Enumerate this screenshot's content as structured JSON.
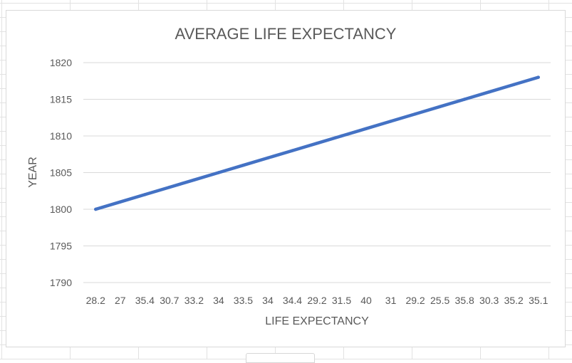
{
  "chart_data": {
    "type": "line",
    "title": "AVERAGE LIFE EXPECTANCY",
    "xlabel": "LIFE EXPECTANCY",
    "ylabel": "YEAR",
    "categories": [
      "28.2",
      "27",
      "35.4",
      "30.7",
      "33.2",
      "34",
      "33.5",
      "34",
      "34.4",
      "29.2",
      "31.5",
      "40",
      "31",
      "29.2",
      "25.5",
      "35.8",
      "30.3",
      "35.2",
      "35.1"
    ],
    "series": [
      {
        "name": "",
        "values": [
          1800,
          1801,
          1802,
          1803,
          1804,
          1805,
          1806,
          1807,
          1808,
          1809,
          1810,
          1811,
          1812,
          1813,
          1814,
          1815,
          1816,
          1817,
          1818
        ]
      }
    ],
    "ylim": [
      1790,
      1820
    ],
    "yticks": [
      1790,
      1795,
      1800,
      1805,
      1810,
      1815,
      1820
    ],
    "grid": true,
    "legend": "none",
    "colors": {
      "line": "#4472c4",
      "grid": "#d9d9d9",
      "text": "#595959",
      "title": "#595959"
    }
  }
}
